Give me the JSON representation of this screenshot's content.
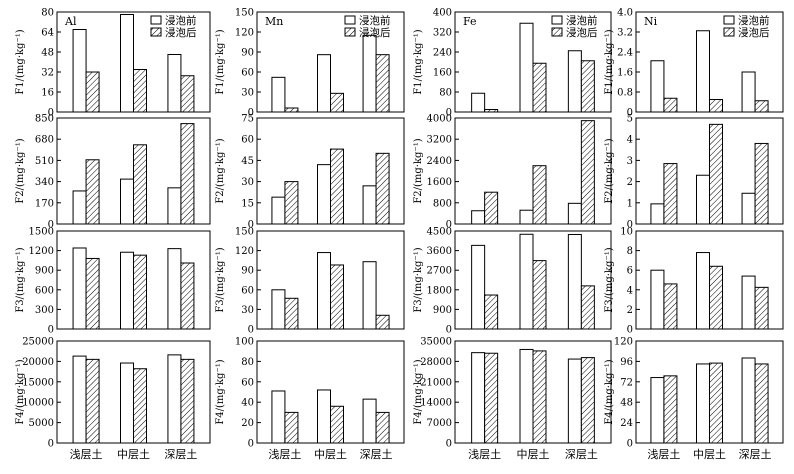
{
  "chart_data": {
    "type": "bar",
    "layout": "grid",
    "rows": 4,
    "cols": 4,
    "categories": [
      "浅层土",
      "中层土",
      "深层土"
    ],
    "legend": [
      "浸泡前",
      "浸泡后"
    ],
    "columns": [
      {
        "element": "Al",
        "legend": true
      },
      {
        "element": "Mn",
        "legend": true
      },
      {
        "element": "Fe",
        "legend": true
      },
      {
        "element": "Ni",
        "legend": true
      }
    ],
    "panels": [
      {
        "id": "F1-Al",
        "ylabel": "F1/(mg·kg⁻¹)",
        "ylim": [
          0,
          80
        ],
        "ticks": [
          "0",
          "16",
          "32",
          "48",
          "64",
          "80"
        ],
        "series": [
          {
            "values": [
              66,
              32
            ]
          },
          {
            "values": [
              78,
              34
            ]
          },
          {
            "values": [
              46,
              29
            ]
          }
        ]
      },
      {
        "id": "F1-Mn",
        "ylabel": "F1/(mg·kg⁻¹)",
        "ylim": [
          0,
          150
        ],
        "ticks": [
          "0",
          "30",
          "60",
          "90",
          "120",
          "150"
        ],
        "series": [
          {
            "values": [
              52,
              6
            ]
          },
          {
            "values": [
              86,
              28
            ]
          },
          {
            "values": [
              115,
              86
            ]
          }
        ]
      },
      {
        "id": "F1-Fe",
        "ylabel": "F1/(mg·kg⁻¹)",
        "ylim": [
          0,
          400
        ],
        "ticks": [
          "0",
          "80",
          "160",
          "240",
          "320",
          "400"
        ],
        "series": [
          {
            "values": [
              75,
              10
            ]
          },
          {
            "values": [
              355,
              195
            ]
          },
          {
            "values": [
              245,
              205
            ]
          }
        ]
      },
      {
        "id": "F1-Ni",
        "ylabel": "F1/(mg·kg⁻¹)",
        "ylim": [
          0,
          4.0
        ],
        "ticks": [
          "0",
          "0.8",
          "1.6",
          "2.4",
          "3.2",
          "4.0"
        ],
        "series": [
          {
            "values": [
              2.05,
              0.55
            ]
          },
          {
            "values": [
              3.25,
              0.5
            ]
          },
          {
            "values": [
              1.6,
              0.45
            ]
          }
        ]
      },
      {
        "id": "F2-Al",
        "ylabel": "F2/(mg·kg⁻¹)",
        "ylim": [
          0,
          850
        ],
        "ticks": [
          "0",
          "170",
          "340",
          "510",
          "680",
          "850"
        ],
        "series": [
          {
            "values": [
              265,
              515
            ]
          },
          {
            "values": [
              360,
              635
            ]
          },
          {
            "values": [
              290,
              805
            ]
          }
        ]
      },
      {
        "id": "F2-Mn",
        "ylabel": "F2/(mg·kg⁻¹)",
        "ylim": [
          0,
          75
        ],
        "ticks": [
          "0",
          "15",
          "30",
          "45",
          "60",
          "75"
        ],
        "series": [
          {
            "values": [
              19,
              30
            ]
          },
          {
            "values": [
              42,
              53
            ]
          },
          {
            "values": [
              27,
              50
            ]
          }
        ]
      },
      {
        "id": "F2-Fe",
        "ylabel": "F2/(mg·kg⁻¹)",
        "ylim": [
          0,
          4000
        ],
        "ticks": [
          "0",
          "800",
          "1600",
          "2400",
          "3200",
          "4000"
        ],
        "series": [
          {
            "values": [
              500,
              1200
            ]
          },
          {
            "values": [
              520,
              2200
            ]
          },
          {
            "values": [
              780,
              3900
            ]
          }
        ]
      },
      {
        "id": "F2-Ni",
        "ylabel": "F2/(mg·kg⁻¹)",
        "ylim": [
          0,
          5
        ],
        "ticks": [
          "0",
          "1",
          "2",
          "3",
          "4",
          "5"
        ],
        "series": [
          {
            "values": [
              0.95,
              2.85
            ]
          },
          {
            "values": [
              2.3,
              4.7
            ]
          },
          {
            "values": [
              1.45,
              3.8
            ]
          }
        ]
      },
      {
        "id": "F3-Al",
        "ylabel": "F3/(mg·kg⁻¹)",
        "ylim": [
          0,
          1500
        ],
        "ticks": [
          "0",
          "300",
          "600",
          "900",
          "1200",
          "1500"
        ],
        "series": [
          {
            "values": [
              1240,
              1080
            ]
          },
          {
            "values": [
              1175,
              1130
            ]
          },
          {
            "values": [
              1230,
              1010
            ]
          }
        ]
      },
      {
        "id": "F3-Mn",
        "ylabel": "F3/(mg·kg⁻¹)",
        "ylim": [
          0,
          150
        ],
        "ticks": [
          "0",
          "30",
          "60",
          "90",
          "120",
          "150"
        ],
        "series": [
          {
            "values": [
              60,
              47
            ]
          },
          {
            "values": [
              117,
              98
            ]
          },
          {
            "values": [
              103,
              21
            ]
          }
        ]
      },
      {
        "id": "F3-Fe",
        "ylabel": "F3/(mg·kg⁻¹)",
        "ylim": [
          0,
          4500
        ],
        "ticks": [
          "0",
          "900",
          "1800",
          "2700",
          "3600",
          "4500"
        ],
        "series": [
          {
            "values": [
              3840,
              1560
            ]
          },
          {
            "values": [
              4350,
              3140
            ]
          },
          {
            "values": [
              4340,
              1980
            ]
          }
        ]
      },
      {
        "id": "F3-Ni",
        "ylabel": "F3/(mg·kg⁻¹)",
        "ylim": [
          0,
          10
        ],
        "ticks": [
          "0",
          "2",
          "4",
          "6",
          "8",
          "10"
        ],
        "series": [
          {
            "values": [
              6.0,
              4.6
            ]
          },
          {
            "values": [
              7.8,
              6.4
            ]
          },
          {
            "values": [
              5.4,
              4.25
            ]
          }
        ]
      },
      {
        "id": "F4-Al",
        "ylabel": "F4/(mg·kg⁻¹)",
        "ylim": [
          0,
          25000
        ],
        "ticks": [
          "0",
          "5000",
          "10000",
          "15000",
          "20000",
          "25000"
        ],
        "series": [
          {
            "values": [
              21300,
              20500
            ]
          },
          {
            "values": [
              19600,
              18200
            ]
          },
          {
            "values": [
              21600,
              20500
            ]
          }
        ]
      },
      {
        "id": "F4-Mn",
        "ylabel": "F4/(mg·kg⁻¹)",
        "ylim": [
          0,
          100
        ],
        "ticks": [
          "0",
          "20",
          "40",
          "60",
          "80",
          "100"
        ],
        "series": [
          {
            "values": [
              51,
              30
            ]
          },
          {
            "values": [
              52,
              36
            ]
          },
          {
            "values": [
              43,
              30
            ]
          }
        ]
      },
      {
        "id": "F4-Fe",
        "ylabel": "F4/(mg·kg⁻¹)",
        "ylim": [
          0,
          35000
        ],
        "ticks": [
          "0",
          "7000",
          "14000",
          "21000",
          "28000",
          "35000"
        ],
        "series": [
          {
            "values": [
              31000,
              30800
            ]
          },
          {
            "values": [
              32100,
              31600
            ]
          },
          {
            "values": [
              28800,
              29300
            ]
          }
        ]
      },
      {
        "id": "F4-Ni",
        "ylabel": "F4/(mg·kg⁻¹)",
        "ylim": [
          0,
          120
        ],
        "ticks": [
          "0",
          "24",
          "48",
          "72",
          "96",
          "120"
        ],
        "series": [
          {
            "values": [
              77,
              79
            ]
          },
          {
            "values": [
              93,
              94
            ]
          },
          {
            "values": [
              100,
              93
            ]
          }
        ]
      }
    ]
  }
}
